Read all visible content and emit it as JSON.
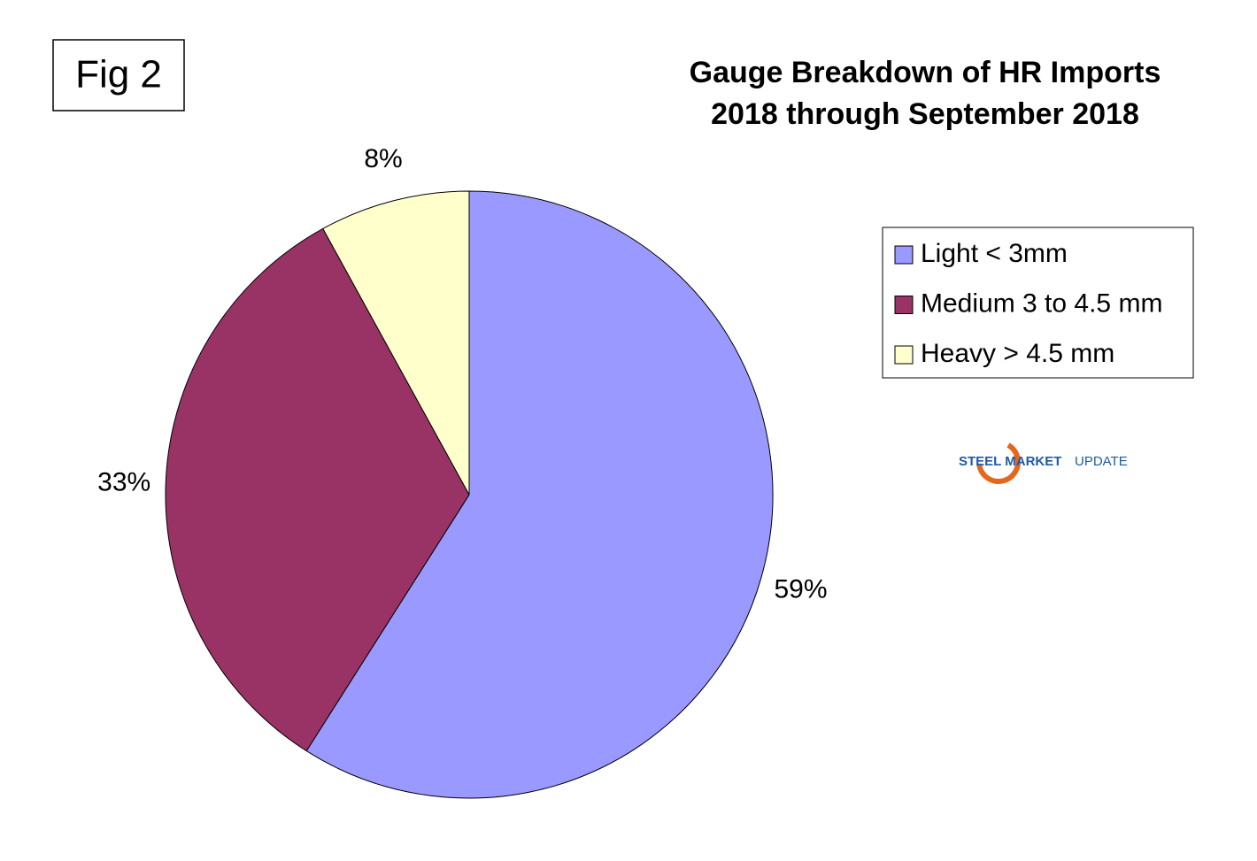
{
  "figure_label": "Fig 2",
  "chart_data": {
    "type": "pie",
    "title": [
      "Gauge Breakdown of HR Imports",
      "2018 through September 2018"
    ],
    "categories": [
      "Light < 3mm",
      "Medium 3 to 4.5 mm",
      "Heavy > 4.5 mm"
    ],
    "values": [
      59,
      33,
      8
    ],
    "value_labels": [
      "59%",
      "33%",
      "8%"
    ],
    "colors": [
      "#9999ff",
      "#993366",
      "#ffffcc"
    ],
    "legend": "right"
  },
  "logo": {
    "primary": "STEEL MARKET",
    "secondary": "UPDATE"
  }
}
